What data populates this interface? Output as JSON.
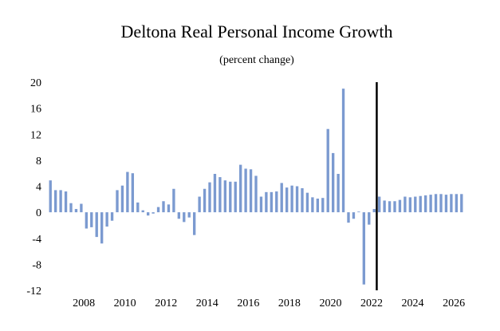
{
  "chart_data": {
    "type": "bar",
    "title": "Deltona Real Personal Income Growth",
    "subtitle": "(percent change)",
    "xlabel": "",
    "ylabel": "",
    "ylim": [
      -12,
      20
    ],
    "y_ticks": [
      20,
      16,
      12,
      8,
      4,
      0,
      -4,
      -8,
      -12
    ],
    "x_tick_labels": [
      "2008",
      "2010",
      "2012",
      "2014",
      "2016",
      "2018",
      "2020",
      "2022",
      "2024",
      "2026"
    ],
    "x_start": 2006.25,
    "period": "quarterly",
    "forecast_start": 2022.25,
    "bar_color": "#7b9ad0",
    "divider_color": "#000000",
    "values": [
      4.9,
      3.4,
      3.4,
      3.2,
      1.4,
      0.5,
      1.3,
      -2.5,
      -2.3,
      -3.8,
      -4.8,
      -2.2,
      -1.3,
      3.4,
      4.1,
      6.2,
      6.0,
      1.5,
      0.3,
      -0.5,
      -0.2,
      0.8,
      1.7,
      1.2,
      3.6,
      -1.0,
      -1.5,
      -0.8,
      -3.5,
      2.4,
      3.6,
      4.6,
      5.9,
      5.4,
      4.9,
      4.7,
      4.7,
      7.3,
      6.7,
      6.6,
      5.6,
      2.4,
      3.1,
      3.1,
      3.2,
      4.5,
      3.8,
      4.1,
      4.0,
      3.7,
      3.0,
      2.3,
      2.1,
      2.2,
      12.8,
      9.1,
      5.9,
      19.0,
      -1.6,
      -1.0,
      0.1,
      -11.1,
      -1.9,
      0.5,
      2.4,
      1.8,
      1.7,
      1.7,
      1.9,
      2.4,
      2.3,
      2.4,
      2.5,
      2.6,
      2.7,
      2.8,
      2.8,
      2.7,
      2.8,
      2.8,
      2.8
    ]
  }
}
